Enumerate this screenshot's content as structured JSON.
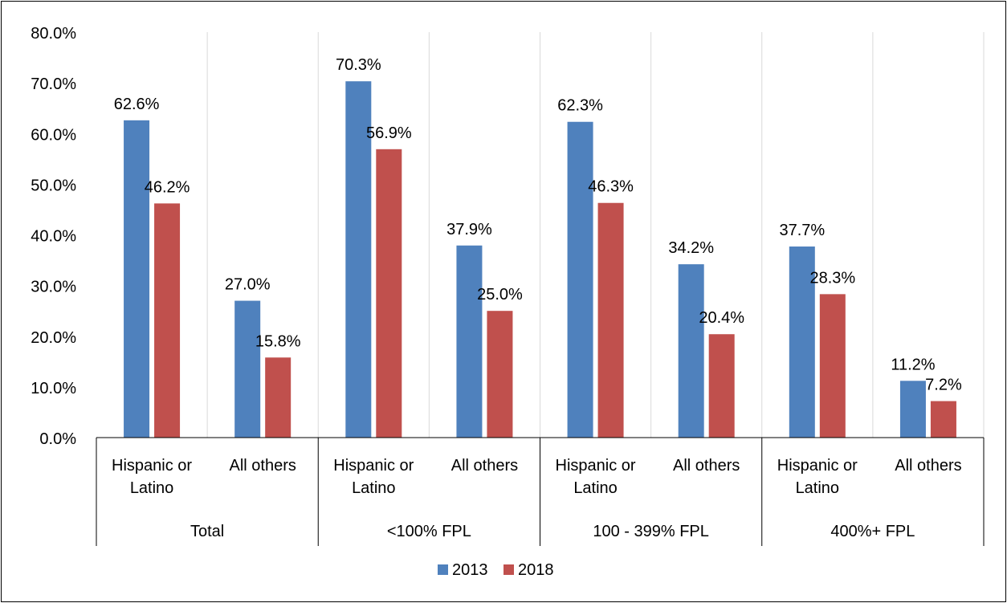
{
  "chart_data": {
    "type": "bar",
    "title": "",
    "groups": [
      "Total",
      "<100% FPL",
      "100 - 399% FPL",
      "400%+ FPL"
    ],
    "categories": [
      "Hispanic or Latino",
      "All others",
      "Hispanic or Latino",
      "All others",
      "Hispanic or Latino",
      "All others",
      "Hispanic or Latino",
      "All others"
    ],
    "series": [
      {
        "name": "2013",
        "color": "#4f81bd",
        "values": [
          62.6,
          27.0,
          70.3,
          37.9,
          62.3,
          34.2,
          37.7,
          11.2
        ]
      },
      {
        "name": "2018",
        "color": "#c0504d",
        "values": [
          46.2,
          15.8,
          56.9,
          25.0,
          46.3,
          20.4,
          28.3,
          7.2
        ]
      }
    ],
    "ylim": [
      0,
      80
    ],
    "yticks": [
      "0.0%",
      "10.0%",
      "20.0%",
      "30.0%",
      "40.0%",
      "50.0%",
      "60.0%",
      "70.0%",
      "80.0%"
    ],
    "value_suffix": "%",
    "grid": "vertical",
    "legend_position": "bottom"
  },
  "colors": {
    "gridline": "#d9d9d9",
    "axis": "#000000",
    "text": "#000000"
  }
}
